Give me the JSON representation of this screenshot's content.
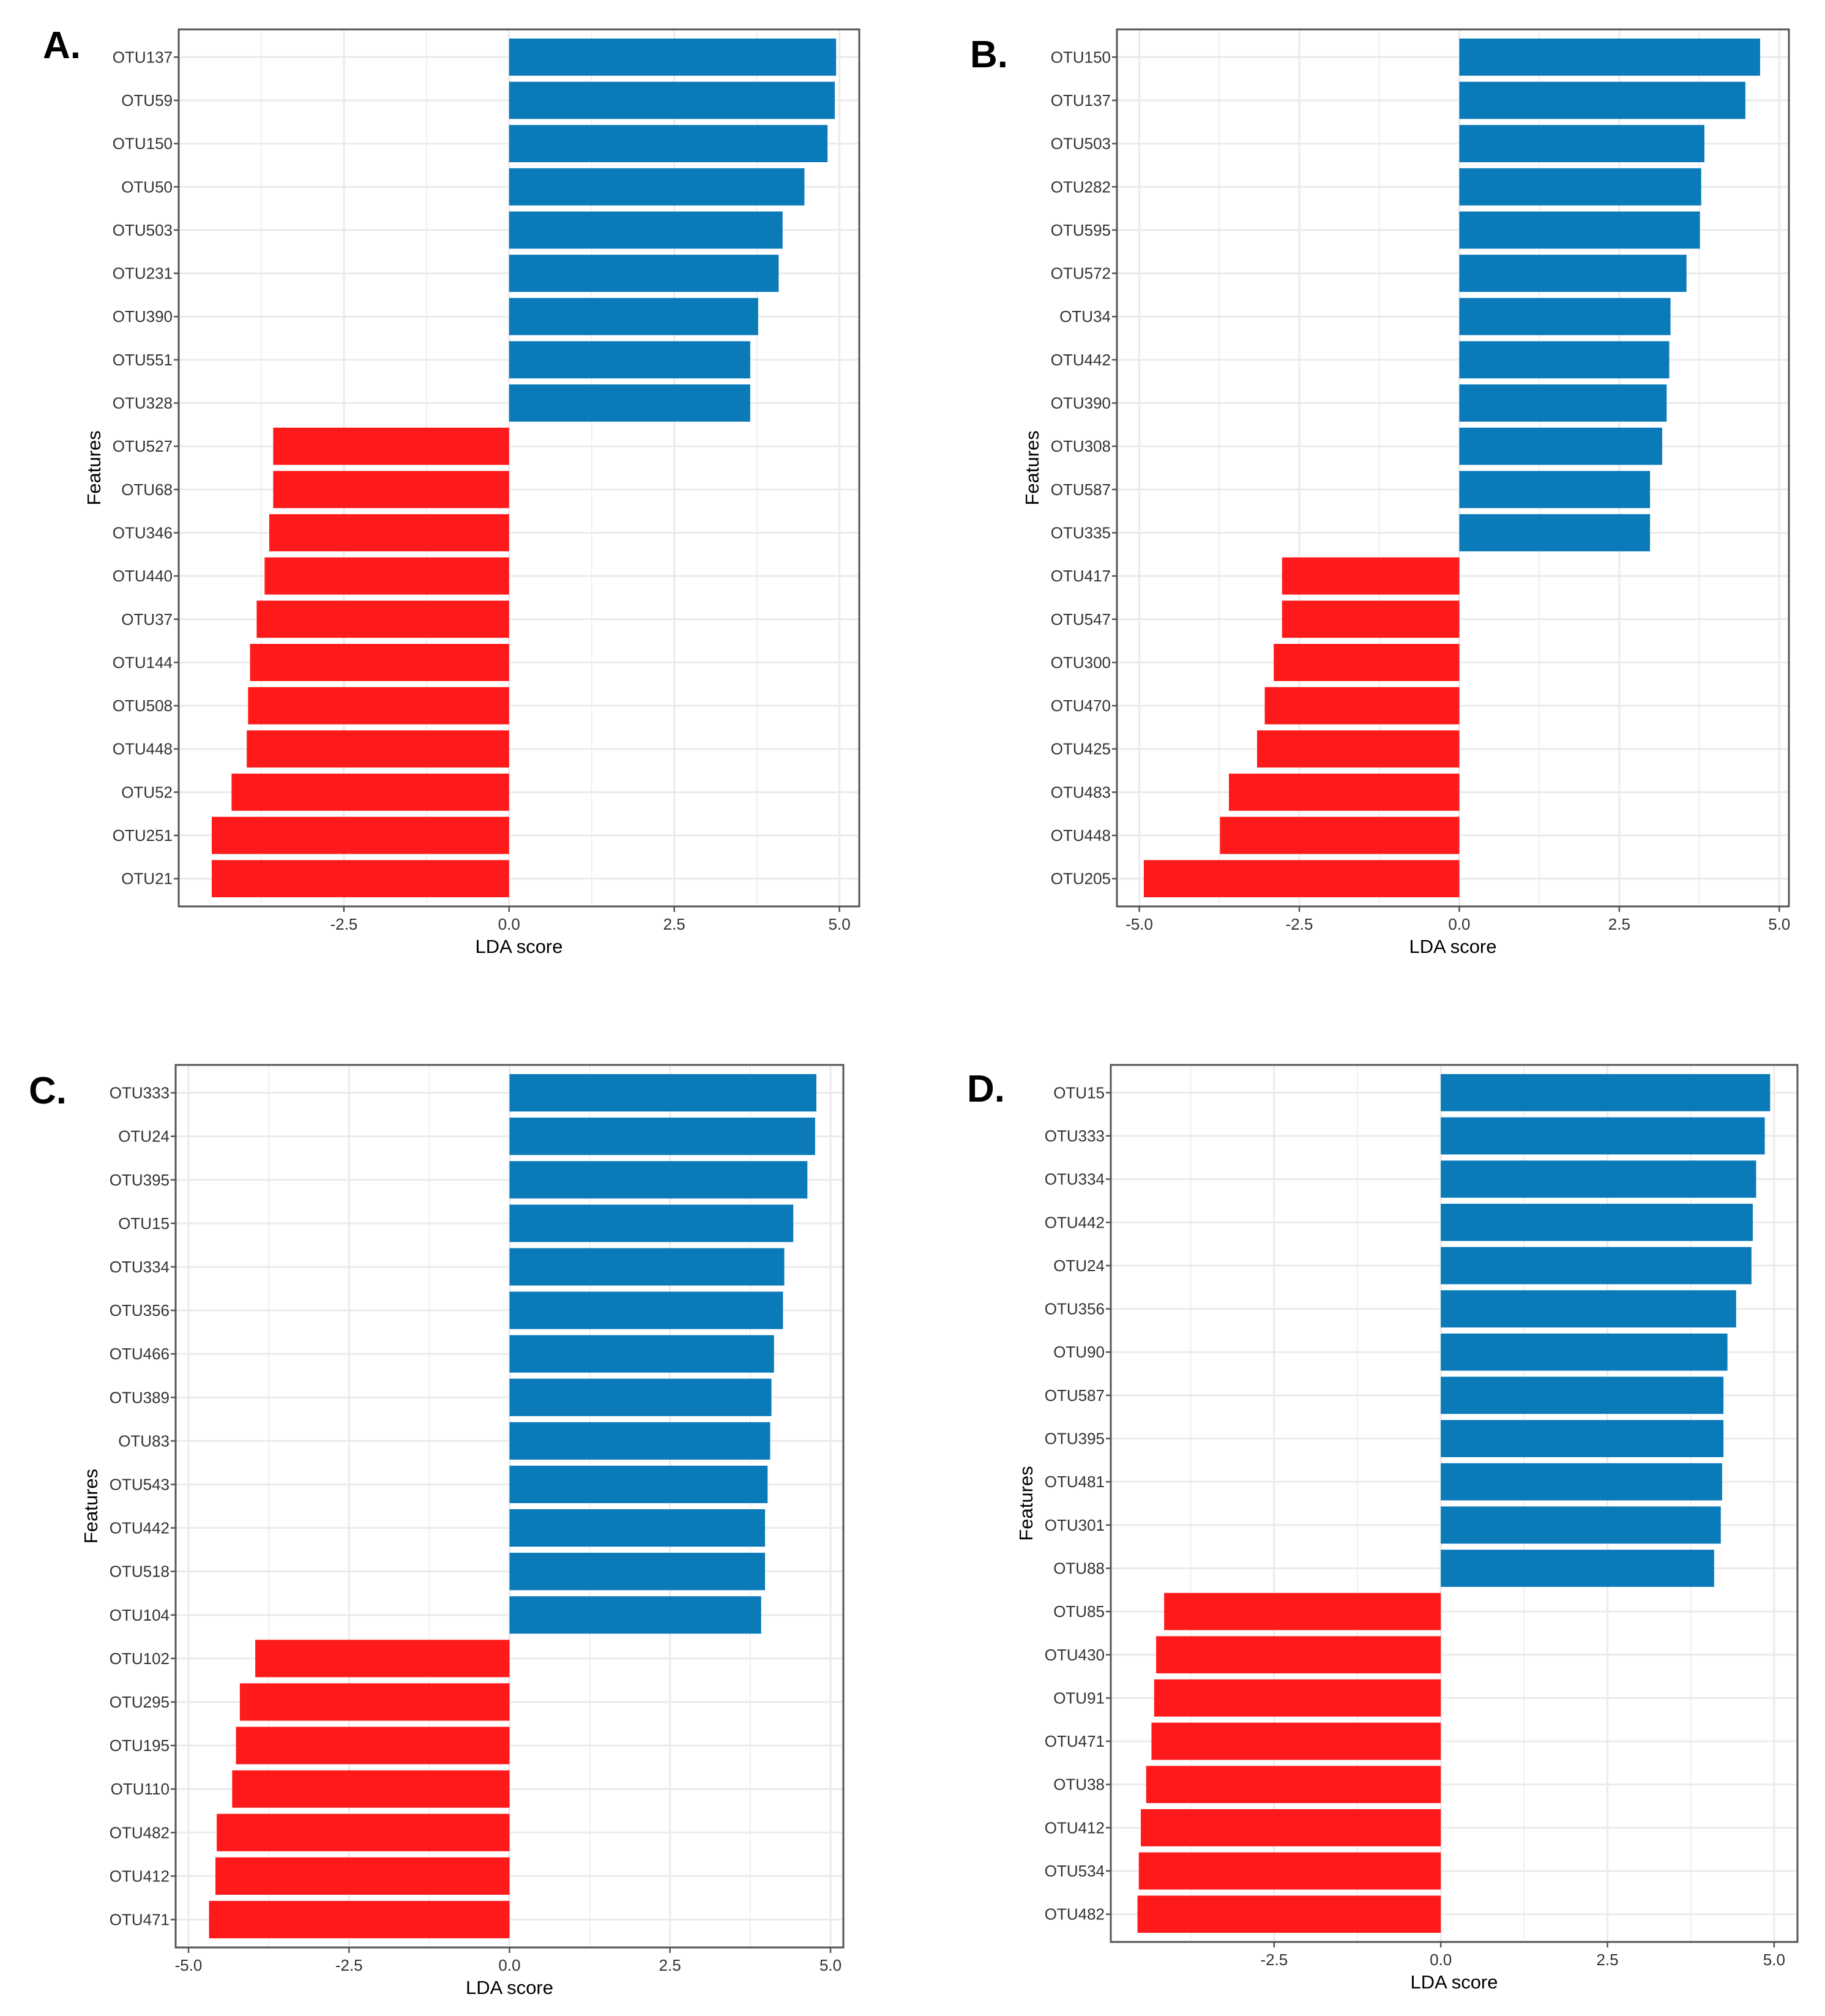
{
  "colors": {
    "positive": "#0a7ab9",
    "negative": "#fe1a1a",
    "frame": "#555555",
    "grid": "#ebebeb",
    "text": "#333333"
  },
  "chart_data": [
    {
      "panel_label": "A.",
      "type": "bar",
      "orientation": "horizontal",
      "xlabel": "LDA score",
      "ylabel": "Features",
      "xlim": [
        -5.0,
        5.3
      ],
      "xticks": [
        -2.5,
        0.0,
        2.5,
        5.0
      ],
      "xtick_labels": [
        "-2.5",
        "0.0",
        "2.5",
        "5.0"
      ],
      "categories": [
        "OTU137",
        "OTU59",
        "OTU150",
        "OTU50",
        "OTU503",
        "OTU231",
        "OTU390",
        "OTU551",
        "OTU328",
        "OTU527",
        "OTU68",
        "OTU346",
        "OTU440",
        "OTU37",
        "OTU144",
        "OTU508",
        "OTU448",
        "OTU52",
        "OTU251",
        "OTU21"
      ],
      "values": [
        4.95,
        4.93,
        4.82,
        4.47,
        4.14,
        4.08,
        3.77,
        3.65,
        3.65,
        -3.57,
        -3.57,
        -3.63,
        -3.7,
        -3.82,
        -3.92,
        -3.95,
        -3.97,
        -4.2,
        -4.5,
        -4.5
      ]
    },
    {
      "panel_label": "B.",
      "type": "bar",
      "orientation": "horizontal",
      "xlabel": "LDA score",
      "ylabel": "Features",
      "xlim": [
        -5.35,
        5.15
      ],
      "xticks": [
        -5.0,
        -2.5,
        0.0,
        2.5,
        5.0
      ],
      "xtick_labels": [
        "-5.0",
        "-2.5",
        "0.0",
        "2.5",
        "5.0"
      ],
      "categories": [
        "OTU150",
        "OTU137",
        "OTU503",
        "OTU282",
        "OTU595",
        "OTU572",
        "OTU34",
        "OTU442",
        "OTU390",
        "OTU308",
        "OTU587",
        "OTU335",
        "OTU417",
        "OTU547",
        "OTU300",
        "OTU470",
        "OTU425",
        "OTU483",
        "OTU448",
        "OTU205"
      ],
      "values": [
        4.7,
        4.47,
        3.83,
        3.78,
        3.76,
        3.55,
        3.3,
        3.28,
        3.24,
        3.17,
        2.98,
        2.98,
        -2.77,
        -2.77,
        -2.9,
        -3.04,
        -3.16,
        -3.6,
        -3.74,
        -4.93
      ]
    },
    {
      "panel_label": "C.",
      "type": "bar",
      "orientation": "horizontal",
      "xlabel": "LDA score",
      "ylabel": "Features",
      "xlim": [
        -5.2,
        5.2
      ],
      "xticks": [
        -5.0,
        -2.5,
        0.0,
        2.5,
        5.0
      ],
      "xtick_labels": [
        "-5.0",
        "-2.5",
        "0.0",
        "2.5",
        "5.0"
      ],
      "categories": [
        "OTU333",
        "OTU24",
        "OTU395",
        "OTU15",
        "OTU334",
        "OTU356",
        "OTU466",
        "OTU389",
        "OTU83",
        "OTU543",
        "OTU442",
        "OTU518",
        "OTU104",
        "OTU102",
        "OTU295",
        "OTU195",
        "OTU110",
        "OTU482",
        "OTU412",
        "OTU471"
      ],
      "values": [
        4.78,
        4.76,
        4.64,
        4.42,
        4.28,
        4.26,
        4.12,
        4.08,
        4.06,
        4.02,
        3.98,
        3.98,
        3.92,
        -3.96,
        -4.2,
        -4.26,
        -4.32,
        -4.56,
        -4.58,
        -4.68
      ]
    },
    {
      "panel_label": "D.",
      "type": "bar",
      "orientation": "horizontal",
      "xlabel": "LDA score",
      "ylabel": "Features",
      "xlim": [
        -4.95,
        5.35
      ],
      "xticks": [
        -2.5,
        0.0,
        2.5,
        5.0
      ],
      "xtick_labels": [
        "-2.5",
        "0.0",
        "2.5",
        "5.0"
      ],
      "categories": [
        "OTU15",
        "OTU333",
        "OTU334",
        "OTU442",
        "OTU24",
        "OTU356",
        "OTU90",
        "OTU587",
        "OTU395",
        "OTU481",
        "OTU301",
        "OTU88",
        "OTU85",
        "OTU430",
        "OTU91",
        "OTU471",
        "OTU38",
        "OTU412",
        "OTU534",
        "OTU482"
      ],
      "values": [
        4.94,
        4.86,
        4.73,
        4.68,
        4.66,
        4.43,
        4.3,
        4.24,
        4.24,
        4.22,
        4.2,
        4.1,
        -4.15,
        -4.27,
        -4.3,
        -4.34,
        -4.42,
        -4.5,
        -4.53,
        -4.55
      ]
    }
  ]
}
